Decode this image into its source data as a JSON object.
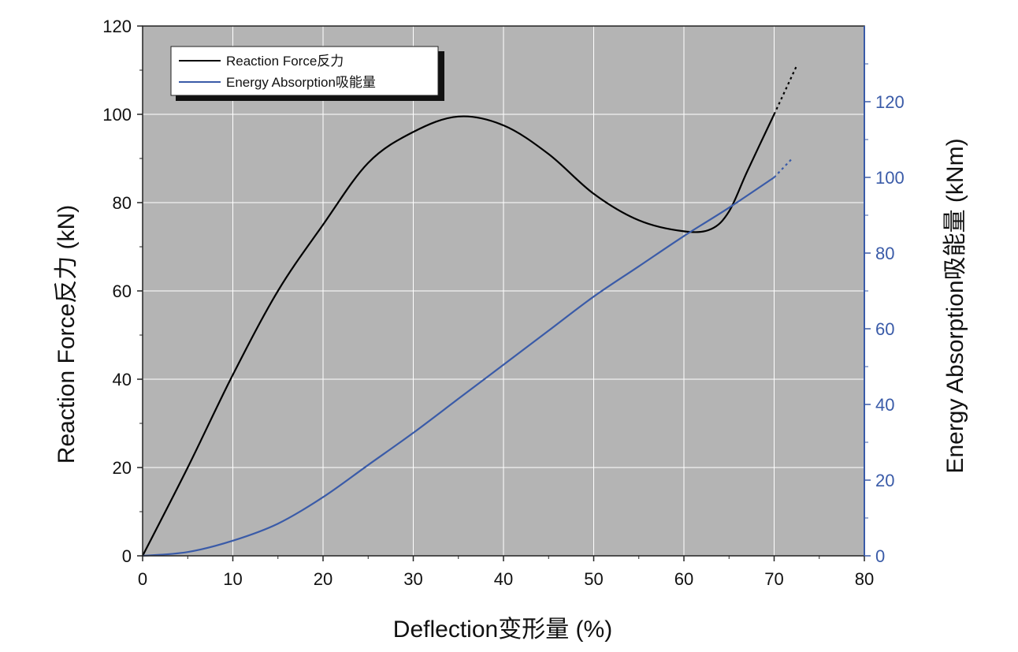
{
  "chart_data": {
    "type": "line",
    "xlabel": "Deflection变形量 (%)",
    "ylabel_left": "Reaction Force反力 (kN)",
    "ylabel_right": "Energy Absorption吸能量 (kNm)",
    "xlim": [
      0,
      80
    ],
    "ylim_left": [
      0,
      120
    ],
    "ylim_right": [
      0,
      140
    ],
    "right_axis_visible_range": [
      0,
      130
    ],
    "x_ticks": [
      0,
      10,
      20,
      30,
      40,
      50,
      60,
      70,
      80
    ],
    "y_left_ticks": [
      0,
      20,
      40,
      60,
      80,
      100,
      120
    ],
    "y_right_ticks": [
      0,
      20,
      40,
      60,
      80,
      100,
      120
    ],
    "grid": true,
    "plot_background": "#b4b4b4",
    "legend_position": "top-left",
    "series": [
      {
        "name": "Reaction Force反力",
        "axis": "left",
        "color": "#000000",
        "x": [
          0,
          5,
          10,
          15,
          20,
          25,
          30,
          35,
          40,
          45,
          50,
          55,
          60,
          63,
          65,
          67,
          70
        ],
        "values": [
          0,
          20,
          41,
          60,
          75,
          89,
          96,
          99.5,
          97.5,
          91,
          82,
          76,
          73.5,
          74,
          78,
          87,
          100
        ],
        "extrapolated": {
          "x": [
            70,
            72.5
          ],
          "values": [
            100,
            111
          ]
        }
      },
      {
        "name": "Energy Absorption吸能量",
        "axis": "right",
        "color": "#3a5ba8",
        "x": [
          0,
          5,
          10,
          15,
          20,
          25,
          30,
          35,
          40,
          45,
          50,
          55,
          60,
          65,
          70
        ],
        "values": [
          0,
          1,
          4,
          8.5,
          15.5,
          24,
          32.5,
          41.5,
          50.5,
          59.5,
          68.5,
          76.5,
          84.5,
          92,
          100
        ],
        "extrapolated": {
          "x": [
            70,
            72
          ],
          "values": [
            100,
            105
          ]
        }
      }
    ]
  }
}
